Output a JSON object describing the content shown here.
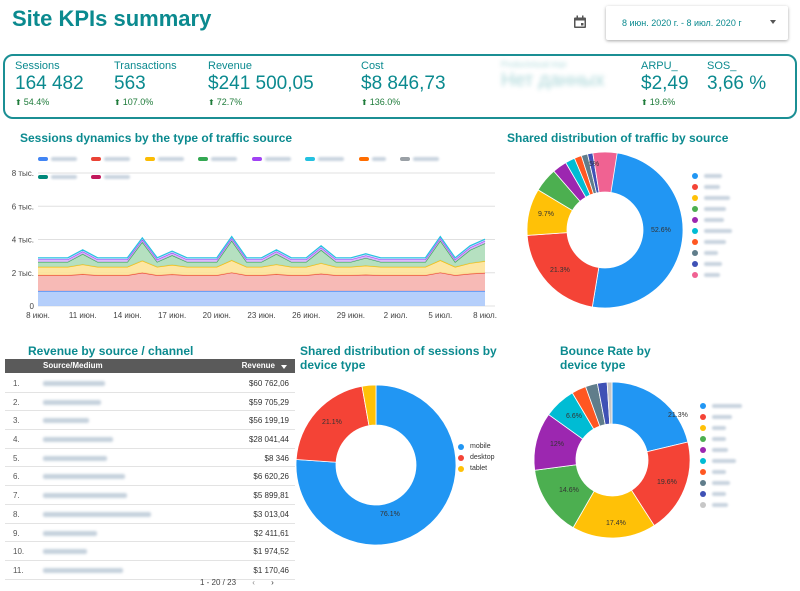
{
  "header": {
    "title": "Site KPIs summary",
    "date_range": "8 июн. 2020 г. - 8 июл. 2020 г"
  },
  "kpis": [
    {
      "label": "Sessions",
      "value": "164 482",
      "delta": "54.4%"
    },
    {
      "label": "Transactions",
      "value": "563",
      "delta": "107.0%"
    },
    {
      "label": "Revenue",
      "value": "$241 500,05",
      "delta": "72.7%"
    },
    {
      "label": "Cost",
      "value": "$8 846,73",
      "delta": "136.0%"
    },
    {
      "label": "Productvisual impr",
      "value": "Нет данных",
      "delta": ""
    },
    {
      "label": "ARPU_",
      "value": "$2,49",
      "delta": "19.6%"
    },
    {
      "label": "SOS_",
      "value": "3,66 %",
      "delta": ""
    }
  ],
  "sessions_dynamics": {
    "title": "Sessions dynamics by the type of traffic source",
    "legend_colors": [
      "#4285f4",
      "#ea4335",
      "#fbbc04",
      "#34a853",
      "#a142f4",
      "#24c1e0",
      "#ff6d00",
      "#9aa0a6"
    ],
    "y_ticks": [
      "0",
      "2 тыс.",
      "4 тыс.",
      "6 тыс.",
      "8 тыс."
    ],
    "x_ticks": [
      "8 июн.",
      "11 июн.",
      "14 июн.",
      "17 июн.",
      "20 июн.",
      "23 июн.",
      "26 июн.",
      "29 июн.",
      "2 июл.",
      "5 июл.",
      "8 июл."
    ]
  },
  "traffic_share": {
    "title": "Shared distribution of traffic by source",
    "labels": [
      "52.6%",
      "21.3%",
      "9.7%",
      "5%"
    ],
    "colors": [
      "#2196f3",
      "#f44336",
      "#ffc107",
      "#4caf50",
      "#9c27b0",
      "#00bcd4",
      "#ff5722",
      "#607d8b",
      "#3f51b5",
      "#f06292"
    ]
  },
  "revenue_table": {
    "title": "Revenue by source / channel",
    "col_source": "Source/Medium",
    "col_revenue": "Revenue",
    "rows": [
      {
        "n": "1.",
        "revenue": "$60 762,06"
      },
      {
        "n": "2.",
        "revenue": "$59 705,29"
      },
      {
        "n": "3.",
        "revenue": "$56 199,19"
      },
      {
        "n": "4.",
        "revenue": "$28 041,44"
      },
      {
        "n": "5.",
        "revenue": "$8 346"
      },
      {
        "n": "6.",
        "revenue": "$6 620,26"
      },
      {
        "n": "7.",
        "revenue": "$5 899,81"
      },
      {
        "n": "8.",
        "revenue": "$3 013,04"
      },
      {
        "n": "9.",
        "revenue": "$2 411,61"
      },
      {
        "n": "10.",
        "revenue": "$1 974,52"
      },
      {
        "n": "11.",
        "revenue": "$1 170,46"
      }
    ],
    "pager": "1 - 20 / 23"
  },
  "device_share": {
    "title": "Shared distribution of sessions by device type",
    "legend": [
      "mobile",
      "desktop",
      "tablet"
    ],
    "labels": [
      "76.1%",
      "21.1%"
    ],
    "colors": [
      "#2196f3",
      "#f44336",
      "#ffc107"
    ]
  },
  "bounce_rate": {
    "title": "Bounce Rate by device type",
    "labels": [
      "21.3%",
      "19.6%",
      "17.4%",
      "14.6%",
      "12%",
      "6.6%"
    ],
    "colors": [
      "#2196f3",
      "#f44336",
      "#ffc107",
      "#4caf50",
      "#9c27b0",
      "#00bcd4",
      "#ff5722",
      "#607d8b",
      "#3f51b5",
      "#c7c7c7"
    ]
  }
}
